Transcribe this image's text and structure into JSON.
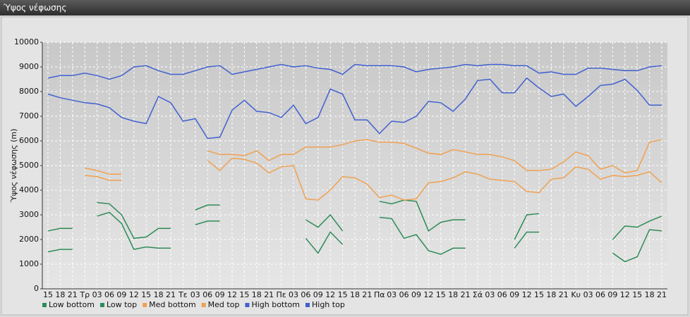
{
  "window_title": "Ύψος νέφωσης",
  "chart_data": {
    "type": "line",
    "y_label": "Ύψος νέφωσης (m)",
    "categories": [
      "15",
      "18",
      "21",
      "Τρ",
      "03",
      "06",
      "09",
      "12",
      "15",
      "18",
      "21",
      "Τε",
      "03",
      "06",
      "09",
      "12",
      "15",
      "18",
      "21",
      "Πε",
      "03",
      "06",
      "09",
      "12",
      "15",
      "18",
      "21",
      "Πα",
      "03",
      "06",
      "09",
      "12",
      "15",
      "18",
      "21",
      "Σά",
      "03",
      "06",
      "09",
      "12",
      "15",
      "18",
      "21",
      "Κυ",
      "03",
      "06",
      "09",
      "12",
      "15",
      "18",
      "21"
    ],
    "ylim": [
      0,
      10000
    ],
    "yticks": [
      0,
      1000,
      2000,
      3000,
      4000,
      5000,
      6000,
      7000,
      8000,
      9000,
      10000
    ],
    "grid": true,
    "legend": "bottom-left",
    "series": [
      {
        "name": "Low bottom",
        "color": "#2e8b57",
        "values": [
          1500,
          1600,
          1600,
          null,
          2950,
          3100,
          2650,
          1600,
          1700,
          1650,
          1650,
          null,
          2600,
          2750,
          2750,
          null,
          null,
          null,
          null,
          null,
          null,
          2050,
          1450,
          2300,
          1800,
          null,
          null,
          2900,
          2850,
          2050,
          2200,
          1550,
          1400,
          1650,
          1650,
          null,
          null,
          null,
          1650,
          2300,
          2300,
          null,
          null,
          null,
          null,
          null,
          1450,
          1100,
          1300,
          2400,
          2350
        ]
      },
      {
        "name": "Low top",
        "color": "#2e8b57",
        "values": [
          2350,
          2450,
          2450,
          null,
          3500,
          3450,
          3000,
          2050,
          2100,
          2450,
          2450,
          null,
          3200,
          3400,
          3400,
          null,
          null,
          null,
          null,
          null,
          null,
          2800,
          2500,
          3000,
          2350,
          null,
          null,
          3550,
          3450,
          3600,
          3550,
          2350,
          2700,
          2800,
          2800,
          null,
          null,
          null,
          2000,
          3000,
          3050,
          null,
          null,
          null,
          null,
          null,
          2000,
          2550,
          2500,
          2750,
          2950
        ]
      },
      {
        "name": "Med bottom",
        "color": "#f0a050",
        "values": [
          null,
          null,
          null,
          4600,
          4550,
          4400,
          4400,
          null,
          null,
          null,
          null,
          null,
          null,
          5200,
          4800,
          5300,
          5250,
          5100,
          4700,
          4950,
          5000,
          3650,
          3600,
          4000,
          4550,
          4500,
          4250,
          3700,
          3800,
          3600,
          3650,
          4300,
          4350,
          4500,
          4750,
          4650,
          4450,
          4400,
          4350,
          3950,
          3900,
          4450,
          4500,
          4950,
          4850,
          4450,
          4600,
          4550,
          4600,
          4750,
          4300
        ]
      },
      {
        "name": "Med top",
        "color": "#f0a050",
        "values": [
          null,
          null,
          null,
          4900,
          4800,
          4650,
          4650,
          null,
          null,
          null,
          null,
          null,
          null,
          5600,
          5450,
          5450,
          5400,
          5600,
          5200,
          5450,
          5450,
          5750,
          5750,
          5750,
          5850,
          6000,
          6050,
          5950,
          5950,
          5900,
          5700,
          5500,
          5450,
          5650,
          5550,
          5450,
          5450,
          5350,
          5200,
          4800,
          4800,
          4850,
          5150,
          5550,
          5400,
          4850,
          5000,
          4700,
          4800,
          5950,
          6050
        ]
      },
      {
        "name": "High bottom",
        "color": "#4060d0",
        "values": [
          7900,
          7750,
          7650,
          7550,
          7500,
          7350,
          6950,
          6800,
          6700,
          7800,
          7550,
          6800,
          6900,
          6100,
          6150,
          7250,
          7650,
          7200,
          7150,
          6950,
          7450,
          6700,
          6950,
          8100,
          7900,
          6850,
          6850,
          6300,
          6800,
          6750,
          7000,
          7600,
          7550,
          7200,
          7700,
          8450,
          8500,
          7950,
          7950,
          8550,
          8150,
          7800,
          7900,
          7400,
          7800,
          8250,
          8300,
          8500,
          8050,
          7450,
          7450
        ]
      },
      {
        "name": "High top",
        "color": "#4060d0",
        "values": [
          8550,
          8650,
          8650,
          8750,
          8650,
          8500,
          8650,
          9000,
          9050,
          8850,
          8700,
          8700,
          8850,
          9000,
          9050,
          8700,
          8800,
          8900,
          9000,
          9100,
          9000,
          9050,
          8950,
          8900,
          8700,
          9100,
          9050,
          9050,
          9050,
          9000,
          8800,
          8900,
          8950,
          9000,
          9100,
          9050,
          9100,
          9100,
          9050,
          9050,
          8750,
          8800,
          8700,
          8700,
          8950,
          8950,
          8900,
          8850,
          8850,
          9000,
          9050
        ]
      }
    ]
  }
}
